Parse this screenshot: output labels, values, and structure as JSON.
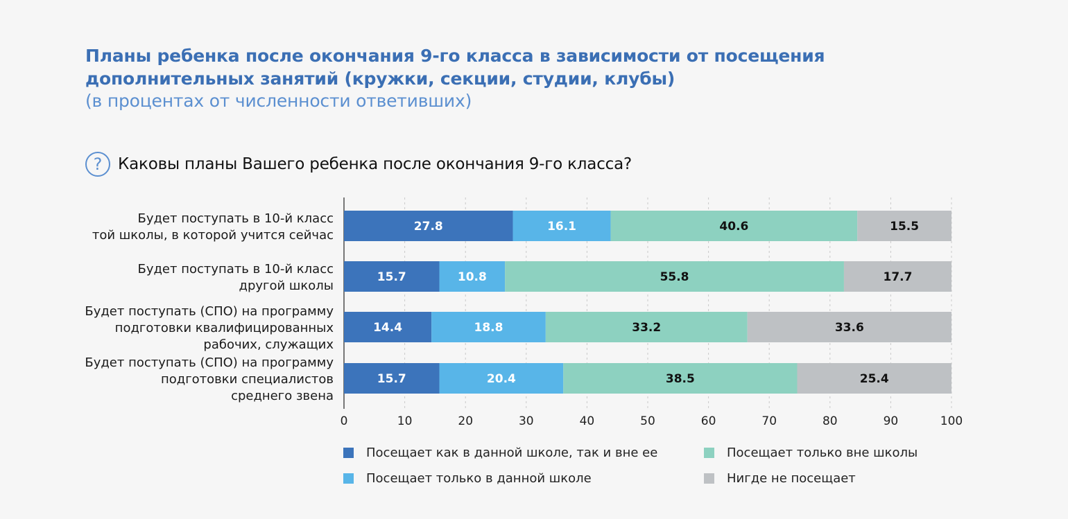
{
  "title": "Планы ребенка после окончания 9-го класса в зависимости от посещения дополнительных занятий (кружки, секции, студии, клубы)",
  "subtitle": "(в процентах от численности ответивших)",
  "question": {
    "icon": "question-circle-icon",
    "text": "Каковы планы Вашего ребенка после окончания 9-го класса?"
  },
  "colors": {
    "title": "#3b6fb4",
    "subtitle": "#5b8fd0",
    "background": "#f6f6f6"
  },
  "chart_data": {
    "type": "bar",
    "orientation": "horizontal",
    "stacked": true,
    "categories": [
      [
        "Будет поступать в 10-й класс",
        "той школы, в которой учится сейчас"
      ],
      [
        "Будет поступать в 10-й класс",
        "другой школы"
      ],
      [
        "Будет поступать (СПО) на программу",
        "подготовки квалифицированных",
        "рабочих, служащих"
      ],
      [
        "Будет поступать (СПО) на программу",
        "подготовки специалистов",
        "среднего звена"
      ]
    ],
    "series": [
      {
        "name": "Посещает как в данной школе, так и вне ее",
        "color": "#3c74bb",
        "label_color": "#ffffff",
        "values": [
          27.8,
          15.7,
          14.4,
          15.7
        ]
      },
      {
        "name": "Посещает только в данной школе",
        "color": "#58b5e8",
        "label_color": "#ffffff",
        "values": [
          16.1,
          10.8,
          18.8,
          20.4
        ]
      },
      {
        "name": "Посещает только вне школы",
        "color": "#8dd1c0",
        "label_color": "#111111",
        "values": [
          40.6,
          55.8,
          33.2,
          38.5
        ]
      },
      {
        "name": "Нигде не посещает",
        "color": "#bec1c4",
        "label_color": "#111111",
        "values": [
          15.5,
          17.7,
          33.6,
          25.4
        ]
      }
    ],
    "xlim": [
      0,
      100
    ],
    "xticks": [
      0,
      10,
      20,
      30,
      40,
      50,
      60,
      70,
      80,
      90,
      100
    ],
    "grid": true,
    "legend_position": "bottom"
  }
}
